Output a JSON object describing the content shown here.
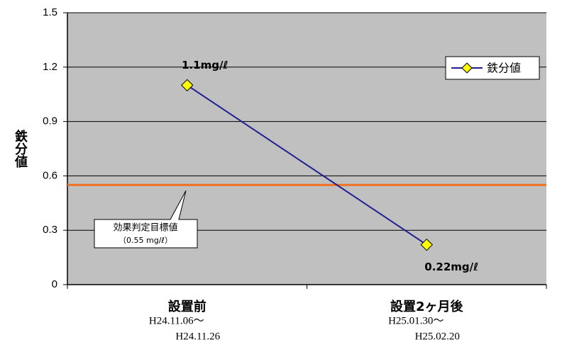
{
  "chart_data": {
    "type": "line",
    "y_label": "鉄分値",
    "categories": [
      "設置前",
      "設置2ヶ月後"
    ],
    "category_notes": [
      [
        "H24.11.06～",
        "H24.11.26"
      ],
      [
        "H25.01.30～",
        "H25.02.20"
      ]
    ],
    "series": [
      {
        "name": "鉄分値",
        "color": "#1f1f8f",
        "marker_color": "#ffff00",
        "values": [
          1.1,
          0.22
        ],
        "value_labels": [
          "1.1mg/ℓ",
          "0.22mg/ℓ"
        ]
      }
    ],
    "reference_line": {
      "value": 0.55,
      "color": "#f07020",
      "label": [
        "効果判定目標値",
        "（0.55 mg/ℓ）"
      ]
    },
    "ylim": [
      0,
      1.5
    ],
    "yticks": [
      0,
      0.3,
      0.6,
      0.9,
      1.2,
      1.5
    ],
    "grid": true,
    "legend": "top-right",
    "background": "#c0c0c0"
  }
}
